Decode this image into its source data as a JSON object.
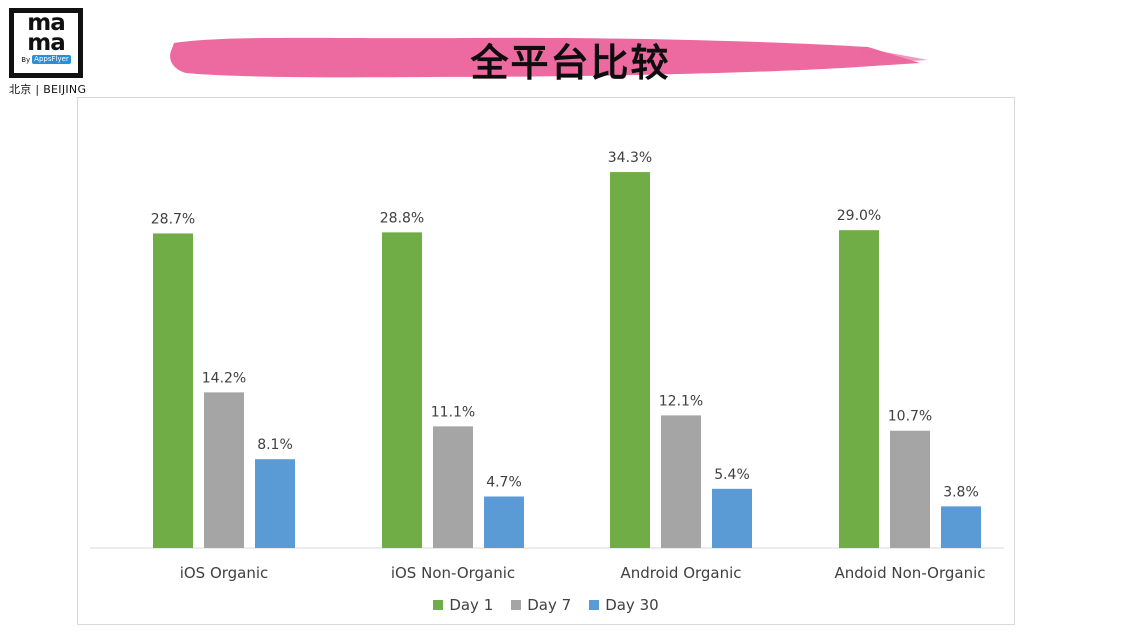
{
  "logo": {
    "line1": "ma",
    "line2": "ma",
    "by_text": "By",
    "brand": "AppsFlyer",
    "city": "北京 | BEIJING"
  },
  "title": "全平台比较",
  "colors": {
    "title_brush": "#ec6aa0",
    "day1": "#70ad47",
    "day7": "#a5a5a5",
    "day30": "#5b9bd5",
    "axis": "#d9d9d9"
  },
  "chart_data": {
    "type": "bar",
    "title": "",
    "xlabel": "",
    "ylabel": "",
    "ylim": [
      0,
      36
    ],
    "grid": false,
    "legend_position": "bottom",
    "categories": [
      "iOS Organic",
      "iOS Non-Organic",
      "Android Organic",
      "Andoid Non-Organic"
    ],
    "series": [
      {
        "name": "Day 1",
        "values": [
          28.7,
          28.8,
          34.3,
          29.0
        ],
        "labels": [
          "28.7%",
          "28.8%",
          "34.3%",
          "29.0%"
        ]
      },
      {
        "name": "Day 7",
        "values": [
          14.2,
          11.1,
          12.1,
          10.7
        ],
        "labels": [
          "14.2%",
          "11.1%",
          "12.1%",
          "10.7%"
        ]
      },
      {
        "name": "Day 30",
        "values": [
          8.1,
          4.7,
          5.4,
          3.8
        ],
        "labels": [
          "8.1%",
          "4.7%",
          "5.4%",
          "3.8%"
        ]
      }
    ]
  }
}
